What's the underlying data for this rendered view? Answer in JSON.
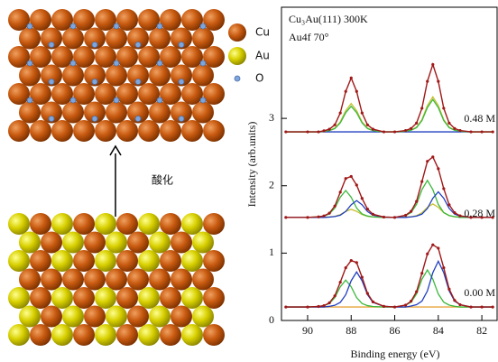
{
  "diagram": {
    "legend": [
      "Cu",
      "Au",
      "O"
    ],
    "arrow_label": "酸化"
  },
  "chart_data": {
    "type": "line",
    "title": "Cu₃Au(111) 300K",
    "subtitle": "Au4f 70°",
    "x_label": "Binding energy (eV)",
    "y_label": "Intensity (arb.units)",
    "annotations": [
      "0.00 M",
      "0.28 M",
      "0.48 M"
    ],
    "xlim": [
      91.2,
      81.3
    ],
    "xticks": [
      90,
      88,
      86,
      84,
      82
    ],
    "ylim": [
      0,
      4.65
    ],
    "yticks": [
      0,
      1,
      2,
      3
    ],
    "x": [
      91,
      90,
      89.5,
      89.25,
      89,
      88.75,
      88.5,
      88.25,
      88,
      87.75,
      87.5,
      87.25,
      87,
      86.5,
      86,
      85.5,
      85.25,
      85,
      84.75,
      84.5,
      84.25,
      84,
      83.75,
      83.5,
      83.25,
      83,
      82.5,
      82,
      81.5
    ],
    "series": [
      {
        "color": "#e8a33a",
        "values": [
          0.2,
          0.2,
          0.2,
          0.2,
          0.2,
          0.2,
          0.2,
          0.2,
          0.2,
          0.2,
          0.2,
          0.2,
          0.2,
          0.2,
          0.2,
          0.2,
          0.2,
          0.2,
          0.2,
          0.2,
          0.2,
          0.2,
          0.2,
          0.2,
          0.2,
          0.2,
          0.2,
          0.2,
          0.2
        ]
      },
      {
        "color": "#3cb83c",
        "values": [
          0.2,
          0.2,
          0.208,
          0.22,
          0.252,
          0.34,
          0.5,
          0.6,
          0.5,
          0.34,
          0.252,
          0.22,
          0.208,
          0.2,
          0.2,
          0.228,
          0.272,
          0.393,
          0.613,
          0.75,
          0.613,
          0.393,
          0.272,
          0.228,
          0.211,
          0.2,
          0.2,
          0.2,
          0.2
        ]
      },
      {
        "color": "#2040c0",
        "values": [
          0.2,
          0.2,
          0.2,
          0.2,
          0.21,
          0.226,
          0.268,
          0.382,
          0.59,
          0.72,
          0.59,
          0.382,
          0.268,
          0.21,
          0.2,
          0.2,
          0.214,
          0.234,
          0.288,
          0.438,
          0.71,
          0.88,
          0.71,
          0.438,
          0.288,
          0.234,
          0.2,
          0.2,
          0.2
        ]
      },
      {
        "color": "#a01818",
        "markers": true,
        "values": [
          0.2,
          0.2,
          0.208,
          0.22,
          0.262,
          0.366,
          0.568,
          0.782,
          0.89,
          0.86,
          0.642,
          0.402,
          0.276,
          0.21,
          0.2,
          0.228,
          0.286,
          0.427,
          0.701,
          0.988,
          1.123,
          1.073,
          0.782,
          0.466,
          0.299,
          0.234,
          0.2,
          0.2,
          0.2
        ]
      },
      {
        "color": "#c8c030",
        "values": [
          1.53,
          1.53,
          1.53,
          1.532,
          1.536,
          1.546,
          1.572,
          1.62,
          1.65,
          1.62,
          1.572,
          1.546,
          1.536,
          1.53,
          1.53,
          1.534,
          1.54,
          1.556,
          1.6,
          1.68,
          1.73,
          1.68,
          1.6,
          1.556,
          1.54,
          1.534,
          1.53,
          1.53,
          1.53
        ]
      },
      {
        "color": "#3cb83c",
        "values": [
          1.53,
          1.53,
          1.538,
          1.55,
          1.582,
          1.67,
          1.83,
          1.93,
          1.83,
          1.67,
          1.582,
          1.55,
          1.538,
          1.53,
          1.53,
          1.558,
          1.602,
          1.723,
          1.943,
          2.08,
          1.943,
          1.723,
          1.602,
          1.558,
          1.541,
          1.53,
          1.53,
          1.53,
          1.53
        ]
      },
      {
        "color": "#2040c0",
        "values": [
          1.53,
          1.53,
          1.53,
          1.53,
          1.535,
          1.543,
          1.563,
          1.618,
          1.718,
          1.78,
          1.718,
          1.618,
          1.563,
          1.535,
          1.53,
          1.53,
          1.538,
          1.549,
          1.579,
          1.663,
          1.815,
          1.91,
          1.815,
          1.663,
          1.579,
          1.549,
          1.53,
          1.53,
          1.53
        ]
      },
      {
        "color": "#a01818",
        "markers": true,
        "values": [
          1.53,
          1.53,
          1.538,
          1.552,
          1.593,
          1.699,
          1.905,
          2.108,
          2.138,
          2.01,
          1.812,
          1.654,
          1.577,
          1.535,
          1.53,
          1.562,
          1.62,
          1.768,
          2.062,
          2.363,
          2.428,
          2.253,
          1.957,
          1.717,
          1.6,
          1.553,
          1.53,
          1.53,
          1.53
        ]
      },
      {
        "color": "#2040c0",
        "values": [
          2.8,
          2.8,
          2.8,
          2.8,
          2.8,
          2.8,
          2.8,
          2.8,
          2.8,
          2.8,
          2.8,
          2.8,
          2.8,
          2.8,
          2.8,
          2.8,
          2.8,
          2.8,
          2.8,
          2.8,
          2.8,
          2.8,
          2.8,
          2.8,
          2.8,
          2.8,
          2.8,
          2.8,
          2.8
        ]
      },
      {
        "color": "#c8c030",
        "values": [
          2.8,
          2.8,
          2.8,
          2.808,
          2.821,
          2.855,
          2.947,
          3.115,
          3.22,
          3.115,
          2.947,
          2.855,
          2.821,
          2.8,
          2.8,
          2.81,
          2.826,
          2.868,
          2.982,
          3.19,
          3.32,
          3.19,
          2.982,
          2.868,
          2.826,
          2.81,
          2.8,
          2.8,
          2.8
        ]
      },
      {
        "color": "#3cb83c",
        "values": [
          2.8,
          2.8,
          2.8,
          2.808,
          2.819,
          2.849,
          2.933,
          3.085,
          3.18,
          3.085,
          2.933,
          2.849,
          2.819,
          2.8,
          2.8,
          2.81,
          2.824,
          2.862,
          2.968,
          3.16,
          3.28,
          3.16,
          2.968,
          2.862,
          2.824,
          2.81,
          2.8,
          2.8,
          2.8
        ]
      },
      {
        "color": "#a01818",
        "markers": true,
        "values": [
          2.8,
          2.8,
          2.8,
          2.816,
          2.84,
          2.904,
          3.08,
          3.4,
          3.6,
          3.4,
          3.08,
          2.904,
          2.84,
          2.8,
          2.8,
          2.82,
          2.85,
          2.93,
          3.15,
          3.55,
          3.8,
          3.55,
          3.15,
          2.93,
          2.85,
          2.82,
          2.8,
          2.8,
          2.8
        ]
      }
    ]
  }
}
